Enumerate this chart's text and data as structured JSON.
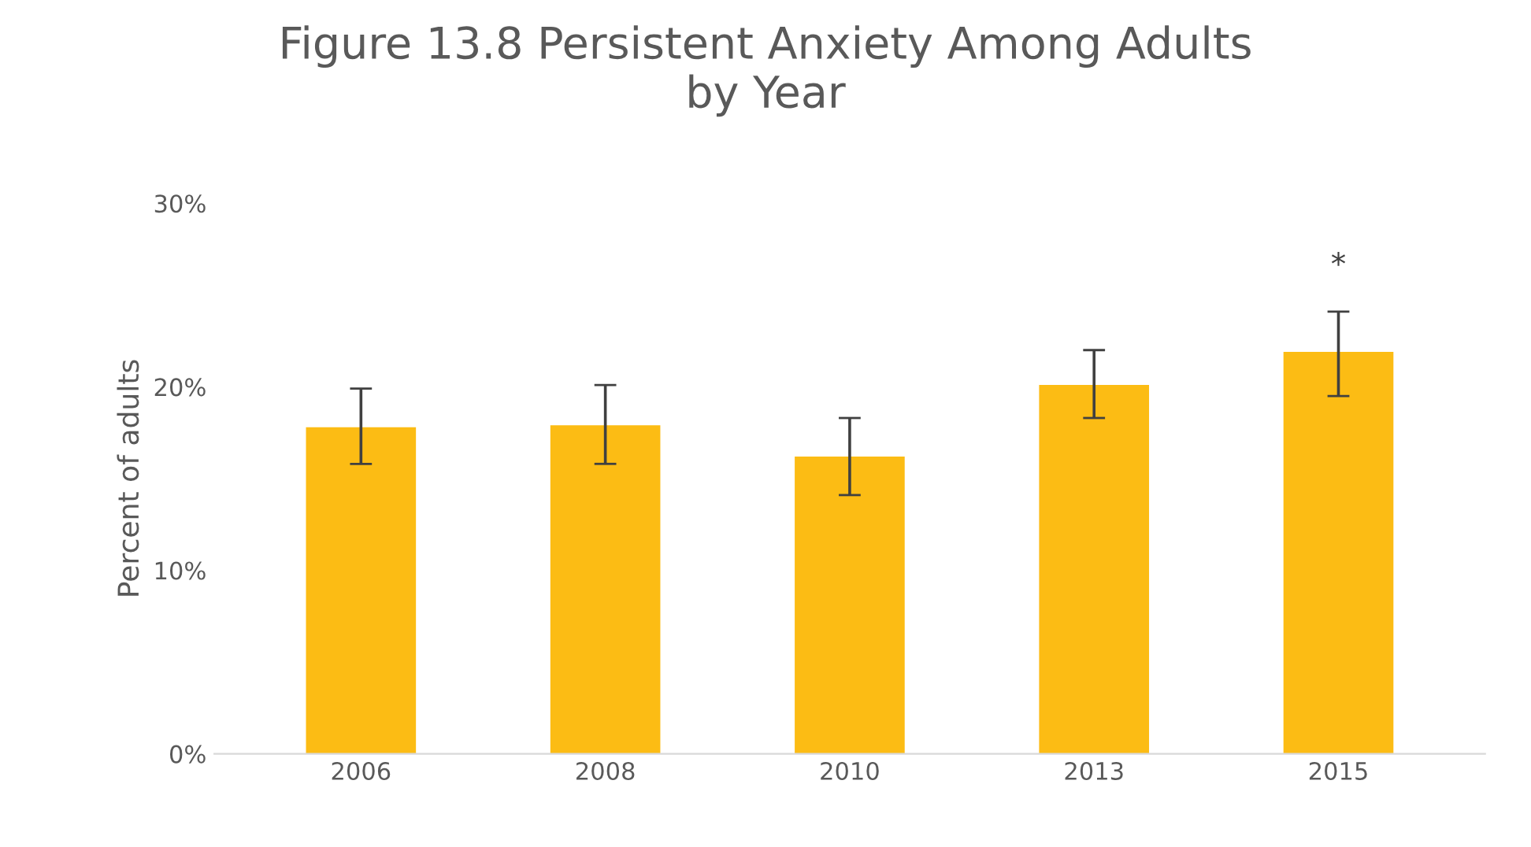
{
  "chart_data": {
    "type": "bar",
    "title": "Figure 13.8 Persistent Anxiety Among Adults\nby Year",
    "ylabel": "Percent of adults",
    "categories": [
      "2006",
      "2008",
      "2010",
      "2013",
      "2015"
    ],
    "values": [
      17.8,
      17.9,
      16.2,
      20.1,
      21.9
    ],
    "errors": [
      [
        15.8,
        19.9
      ],
      [
        15.8,
        20.1
      ],
      [
        14.1,
        18.3
      ],
      [
        18.3,
        22.0
      ],
      [
        19.5,
        24.1
      ]
    ],
    "color": "#fcbc14",
    "ylim": [
      0,
      30
    ],
    "yticks": [
      {
        "value": 0,
        "label": "0%"
      },
      {
        "value": 10,
        "label": "10%"
      },
      {
        "value": 20,
        "label": "20%"
      },
      {
        "value": 30,
        "label": "30%"
      }
    ],
    "annotations": [
      "*"
    ],
    "grid": false,
    "legend": false
  }
}
